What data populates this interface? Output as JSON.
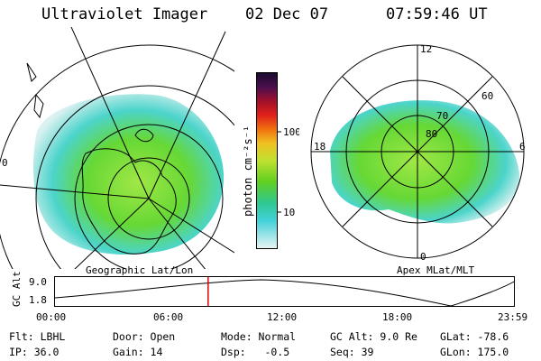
{
  "header": {
    "title": "Ultraviolet Imager",
    "date": "02 Dec 07",
    "time": "07:59:46 UT"
  },
  "colorbar": {
    "label": "photon cm⁻²s⁻¹",
    "ticks": [
      "100",
      "10"
    ]
  },
  "left_map": {
    "caption": "Geographic Lat/Lon",
    "edge_label": "0"
  },
  "right_map": {
    "caption": "Apex MLat/MLT",
    "lat_labels": [
      "80",
      "70",
      "60"
    ],
    "mlt_labels": {
      "top": "12",
      "left": "18",
      "right": "6",
      "bottom": "0"
    }
  },
  "timeline": {
    "ylabel": "GC Alt",
    "yticks": [
      "9.0",
      "1.8"
    ],
    "xticks": [
      "00:00",
      "06:00",
      "12:00",
      "18:00",
      "23:59"
    ],
    "current_fraction": 0.333
  },
  "info": {
    "row1": [
      "Flt: LBHL",
      "Door: Open",
      "Mode: Normal",
      "GC Alt: 9.0 Re",
      "GLat: -78.6"
    ],
    "row2": [
      "IP: 36.0",
      "Gain: 14",
      "Dsp:   -0.5",
      "Seq: 39",
      "GLon: 175.0"
    ]
  },
  "colors": {
    "cursor": "#e00000",
    "aurora_green": "#5ed62a",
    "aurora_cyan": "#42d2c8"
  }
}
